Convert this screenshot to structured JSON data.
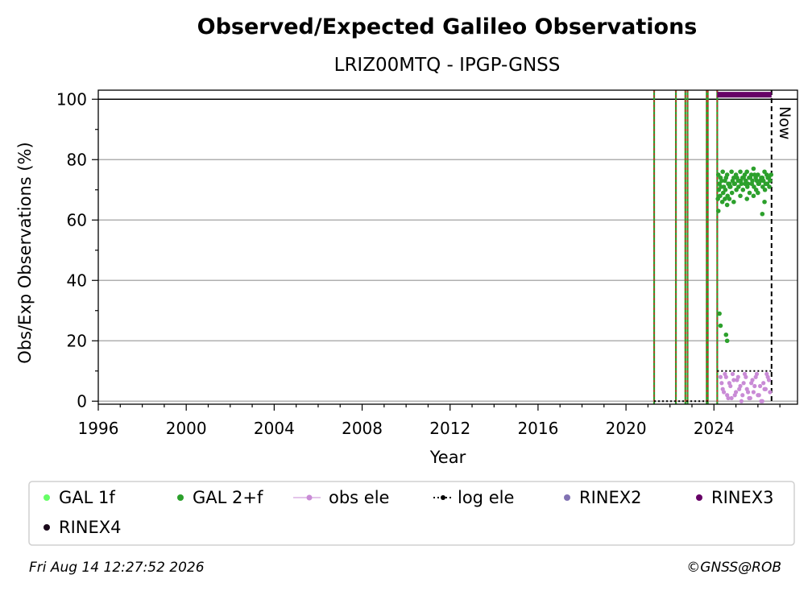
{
  "chart_data": {
    "type": "scatter",
    "title": "Observed/Expected Galileo Observations",
    "subtitle": "LRIZ00MTQ - IPGP-GNSS",
    "xlabel": "Year",
    "ylabel": "Obs/Exp Observations (%)",
    "xlim": [
      1996,
      2027.8
    ],
    "ylim": [
      -1,
      103
    ],
    "x_ticks": [
      1996,
      2000,
      2004,
      2008,
      2012,
      2016,
      2020,
      2024
    ],
    "y_ticks": [
      0,
      20,
      40,
      60,
      80,
      100
    ],
    "grid": "horizontal",
    "reference_line": 100,
    "now_label": "Now",
    "now_x": 2026.62,
    "station_event_lines": [
      2021.28,
      2022.27,
      2022.7,
      2022.8,
      2023.67,
      2023.72,
      2024.15
    ],
    "rinex3_coverage": {
      "x_start": 2024.15,
      "x_end": 2026.62,
      "y": 101.5
    },
    "log_ele_segments": [
      {
        "x": [
          2021.28,
          2023.72
        ],
        "y": [
          0,
          0
        ]
      },
      {
        "x": [
          2024.15,
          2026.62
        ],
        "y": [
          10,
          10
        ]
      }
    ],
    "series": [
      {
        "name": "GAL 1f",
        "color": "#66ff66",
        "x": [],
        "y": []
      },
      {
        "name": "GAL 2+f",
        "color": "#2ca02c",
        "x": [
          2024.2,
          2024.3,
          2024.4,
          2024.5,
          2024.6,
          2024.7,
          2024.8,
          2024.9,
          2025.0,
          2025.1,
          2025.2,
          2025.3,
          2025.4,
          2025.5,
          2025.6,
          2025.7,
          2025.8,
          2025.9,
          2026.0,
          2026.1,
          2026.2,
          2026.3,
          2026.4,
          2026.5,
          2026.6,
          2024.25,
          2024.35,
          2024.45,
          2024.55,
          2024.65,
          2024.75,
          2024.85,
          2024.95,
          2025.05,
          2025.15,
          2025.25,
          2025.35,
          2025.45,
          2025.55,
          2025.65,
          2025.75,
          2025.85,
          2025.95,
          2026.05,
          2026.15,
          2026.25,
          2026.35,
          2026.45,
          2026.55,
          2024.22,
          2024.32,
          2024.42,
          2024.52,
          2024.62,
          2024.72,
          2024.82,
          2024.92,
          2025.02,
          2025.12,
          2025.22,
          2025.32,
          2025.42,
          2025.52,
          2025.62,
          2025.72,
          2025.82,
          2025.92,
          2026.02,
          2026.12,
          2026.22,
          2026.32,
          2026.42,
          2026.52,
          2024.18,
          2024.28,
          2024.38,
          2024.5,
          2024.6,
          2024.7,
          2024.9,
          2025.2,
          2025.5,
          2025.8,
          2026.0,
          2026.3,
          2024.25,
          2024.3,
          2024.55,
          2024.6,
          2026.2,
          2024.2
        ],
        "y": [
          75,
          74,
          76,
          73,
          75,
          72,
          76,
          74,
          75,
          73,
          76,
          74,
          75,
          76,
          74,
          75,
          77,
          74,
          75,
          73,
          74,
          76,
          75,
          74,
          75,
          72,
          73,
          71,
          74,
          72,
          71,
          73,
          72,
          74,
          73,
          72,
          74,
          73,
          72,
          74,
          73,
          75,
          73,
          72,
          74,
          73,
          72,
          74,
          73,
          70,
          71,
          69,
          70,
          68,
          71,
          69,
          72,
          70,
          71,
          73,
          70,
          72,
          71,
          69,
          72,
          71,
          70,
          72,
          73,
          71,
          70,
          72,
          71,
          67,
          68,
          66,
          67,
          65,
          67,
          66,
          68,
          67,
          68,
          69,
          66,
          29,
          25,
          22,
          20,
          62,
          63
        ]
      },
      {
        "name": "obs ele",
        "color": "#c98bd6",
        "x": [
          2024.3,
          2024.4,
          2024.5,
          2024.6,
          2024.7,
          2024.8,
          2024.9,
          2025.0,
          2025.1,
          2025.2,
          2025.3,
          2025.4,
          2025.5,
          2025.6,
          2025.7,
          2025.8,
          2025.9,
          2026.0,
          2026.1,
          2026.2,
          2026.3,
          2026.4,
          2026.5,
          2024.35,
          2024.45,
          2024.55,
          2024.65,
          2024.75,
          2024.85,
          2024.95,
          2025.05,
          2025.15,
          2025.25,
          2025.35,
          2025.45,
          2025.55,
          2025.65,
          2025.75,
          2025.85,
          2025.95,
          2026.05,
          2026.15,
          2026.25,
          2026.35,
          2026.45,
          2026.55
        ],
        "y": [
          8,
          4,
          9,
          2,
          6,
          1,
          7,
          3,
          8,
          5,
          2,
          9,
          4,
          1,
          6,
          3,
          8,
          2,
          5,
          0,
          4,
          9,
          7,
          6,
          3,
          8,
          1,
          5,
          9,
          2,
          7,
          4,
          0,
          6,
          8,
          3,
          1,
          7,
          5,
          9,
          2,
          0,
          6,
          4,
          8,
          3
        ]
      },
      {
        "name": "log ele",
        "color": "#000000",
        "x": [],
        "y": []
      },
      {
        "name": "RINEX2",
        "color": "#8172b3",
        "x": [],
        "y": []
      },
      {
        "name": "RINEX3",
        "color": "#660066",
        "x": [],
        "y": []
      },
      {
        "name": "RINEX4",
        "color": "#1a0a1a",
        "x": [],
        "y": []
      }
    ],
    "legend_position": "bottom",
    "footer_left": "Fri Aug 14 12:27:52 2026",
    "footer_right": "©GNSS@ROB"
  }
}
